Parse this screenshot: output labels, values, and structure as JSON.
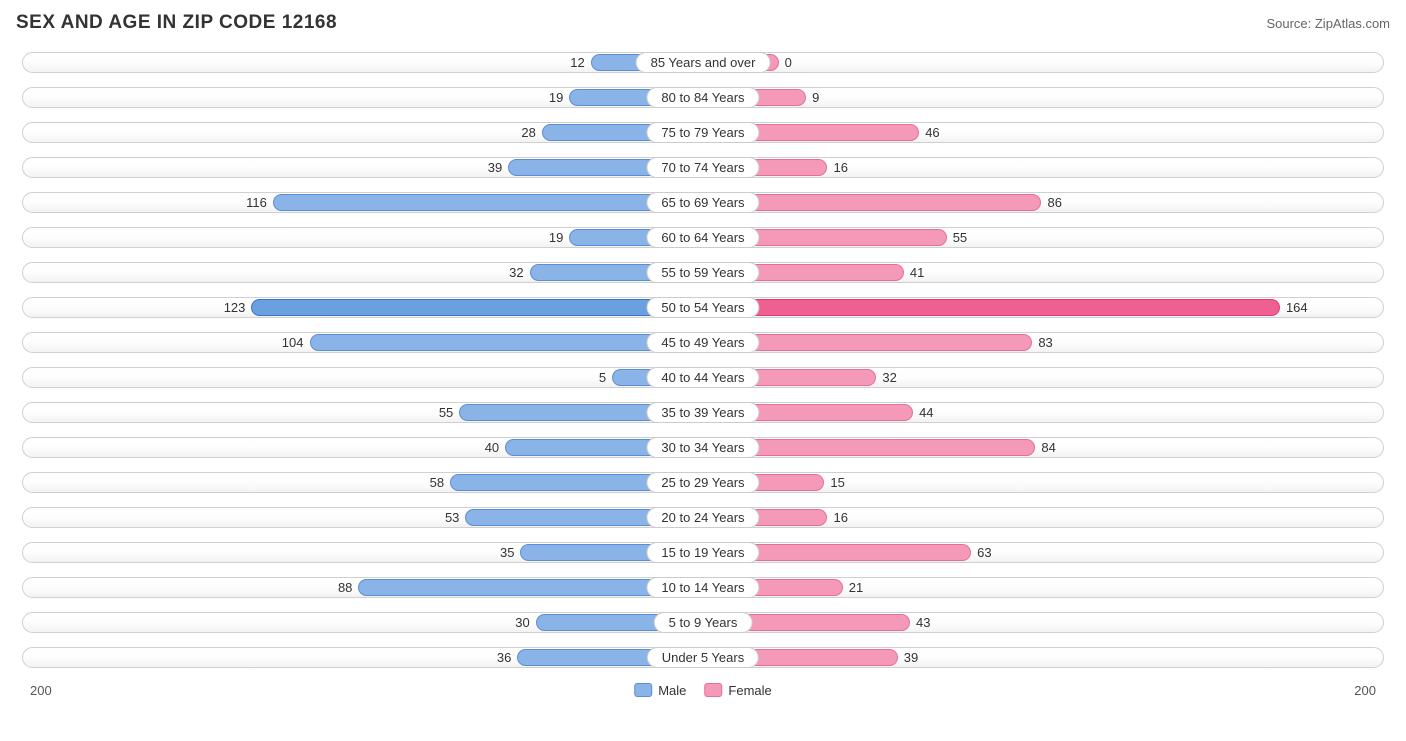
{
  "title": "SEX AND AGE IN ZIP CODE 12168",
  "source": "Source: ZipAtlas.com",
  "axis_max": 200,
  "axis_label_left": "200",
  "axis_label_right": "200",
  "legend": {
    "male": "Male",
    "female": "Female"
  },
  "colors": {
    "male_fill": "#8ab4e8",
    "male_border": "#5a8fd6",
    "male_highlight_fill": "#6aa0e0",
    "male_highlight_border": "#3c74c2",
    "female_fill": "#f49ab8",
    "female_border": "#e66f9a",
    "female_highlight_fill": "#ef5f91",
    "female_highlight_border": "#d93e75",
    "track_border": "#d0d0d0",
    "pill_border": "#cccccc",
    "text": "#333333",
    "background": "#ffffff"
  },
  "typography": {
    "title_fontsize": 19,
    "title_weight": "bold",
    "label_fontsize": 13,
    "source_fontsize": 13
  },
  "pill_width_pct": 11,
  "rows": [
    {
      "category": "85 Years and over",
      "male": 12,
      "female": 0,
      "highlight": false
    },
    {
      "category": "80 to 84 Years",
      "male": 19,
      "female": 9,
      "highlight": false
    },
    {
      "category": "75 to 79 Years",
      "male": 28,
      "female": 46,
      "highlight": false
    },
    {
      "category": "70 to 74 Years",
      "male": 39,
      "female": 16,
      "highlight": false
    },
    {
      "category": "65 to 69 Years",
      "male": 116,
      "female": 86,
      "highlight": false
    },
    {
      "category": "60 to 64 Years",
      "male": 19,
      "female": 55,
      "highlight": false
    },
    {
      "category": "55 to 59 Years",
      "male": 32,
      "female": 41,
      "highlight": false
    },
    {
      "category": "50 to 54 Years",
      "male": 123,
      "female": 164,
      "highlight": true
    },
    {
      "category": "45 to 49 Years",
      "male": 104,
      "female": 83,
      "highlight": false
    },
    {
      "category": "40 to 44 Years",
      "male": 5,
      "female": 32,
      "highlight": false
    },
    {
      "category": "35 to 39 Years",
      "male": 55,
      "female": 44,
      "highlight": false
    },
    {
      "category": "30 to 34 Years",
      "male": 40,
      "female": 84,
      "highlight": false
    },
    {
      "category": "25 to 29 Years",
      "male": 58,
      "female": 15,
      "highlight": false
    },
    {
      "category": "20 to 24 Years",
      "male": 53,
      "female": 16,
      "highlight": false
    },
    {
      "category": "15 to 19 Years",
      "male": 35,
      "female": 63,
      "highlight": false
    },
    {
      "category": "10 to 14 Years",
      "male": 88,
      "female": 21,
      "highlight": false
    },
    {
      "category": "5 to 9 Years",
      "male": 30,
      "female": 43,
      "highlight": false
    },
    {
      "category": "Under 5 Years",
      "male": 36,
      "female": 39,
      "highlight": false
    }
  ]
}
